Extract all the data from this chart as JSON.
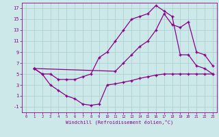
{
  "xlabel": "Windchill (Refroidissement éolien,°C)",
  "xlim": [
    -0.5,
    23.5
  ],
  "ylim": [
    -2,
    18
  ],
  "xticks": [
    0,
    1,
    2,
    3,
    4,
    5,
    6,
    7,
    8,
    9,
    10,
    11,
    12,
    13,
    14,
    15,
    16,
    17,
    18,
    19,
    20,
    21,
    22,
    23
  ],
  "yticks": [
    -1,
    1,
    3,
    5,
    7,
    9,
    11,
    13,
    15,
    17
  ],
  "bg_color": "#cce8e8",
  "grid_color": "#aacece",
  "line_color": "#880088",
  "line1_x": [
    1,
    2,
    3,
    4,
    5,
    6,
    7,
    8,
    9,
    10,
    11,
    12,
    13,
    14,
    15,
    16,
    17,
    18,
    19,
    20,
    21,
    22,
    23
  ],
  "line1_y": [
    6,
    5,
    3,
    2,
    1,
    0.5,
    -0.5,
    -0.7,
    -0.5,
    3,
    3.2,
    3.5,
    3.8,
    4.2,
    4.5,
    4.8,
    5,
    5,
    5,
    5,
    5,
    5,
    5
  ],
  "line2_x": [
    1,
    2,
    3,
    4,
    5,
    6,
    7,
    8,
    9,
    10,
    11,
    12,
    13,
    14,
    15,
    16,
    17,
    18,
    19,
    20,
    21,
    22,
    23
  ],
  "line2_y": [
    6,
    5,
    5,
    4,
    4,
    4,
    4.5,
    5,
    8,
    9,
    11,
    13,
    15,
    15.5,
    16,
    17.5,
    16.5,
    15.5,
    8.5,
    8.5,
    6.5,
    6,
    5
  ],
  "line3_x": [
    1,
    11,
    12,
    13,
    14,
    15,
    16,
    17,
    18,
    19,
    20,
    21,
    22,
    23
  ],
  "line3_y": [
    6,
    5.5,
    7,
    8.5,
    10,
    11,
    13,
    16,
    14,
    13.5,
    14.5,
    9,
    8.5,
    6.5
  ]
}
